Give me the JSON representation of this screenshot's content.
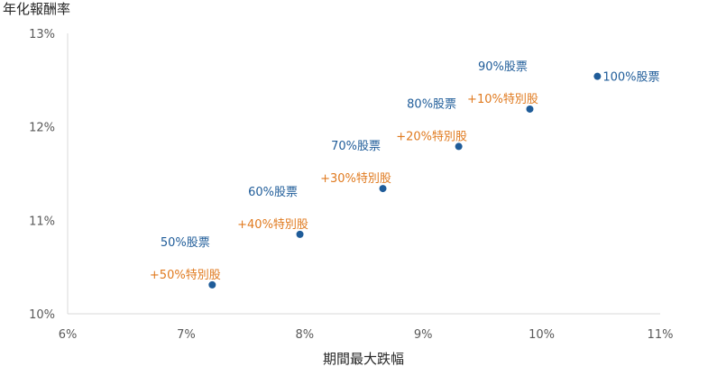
{
  "chart_data": {
    "type": "scatter",
    "title": "",
    "ylabel": "年化報酬率",
    "xlabel": "期間最大跌幅",
    "xlim": [
      6,
      11
    ],
    "ylim": [
      10,
      13
    ],
    "x_ticks": [
      "6%",
      "7%",
      "8%",
      "9%",
      "10%",
      "11%"
    ],
    "y_ticks": [
      "10%",
      "11%",
      "12%",
      "13%"
    ],
    "grid": false,
    "colors": {
      "points": "#1F5C99",
      "stock_label": "#1F5C99",
      "special_label": "#E07A1F",
      "axis": "#d9d9d9"
    },
    "points": [
      {
        "x": 7.22,
        "y": 10.31,
        "stock_label": "50%股票",
        "special_label": "+50%特別股"
      },
      {
        "x": 7.96,
        "y": 10.85,
        "stock_label": "60%股票",
        "special_label": "+40%特別股"
      },
      {
        "x": 8.66,
        "y": 11.34,
        "stock_label": "70%股票",
        "special_label": "+30%特別股"
      },
      {
        "x": 9.3,
        "y": 11.79,
        "stock_label": "80%股票",
        "special_label": "+20%特別股"
      },
      {
        "x": 9.9,
        "y": 12.19,
        "stock_label": "90%股票",
        "special_label": "+10%特別股"
      },
      {
        "x": 10.47,
        "y": 12.54,
        "stock_label": "100%股票",
        "special_label": ""
      }
    ]
  }
}
